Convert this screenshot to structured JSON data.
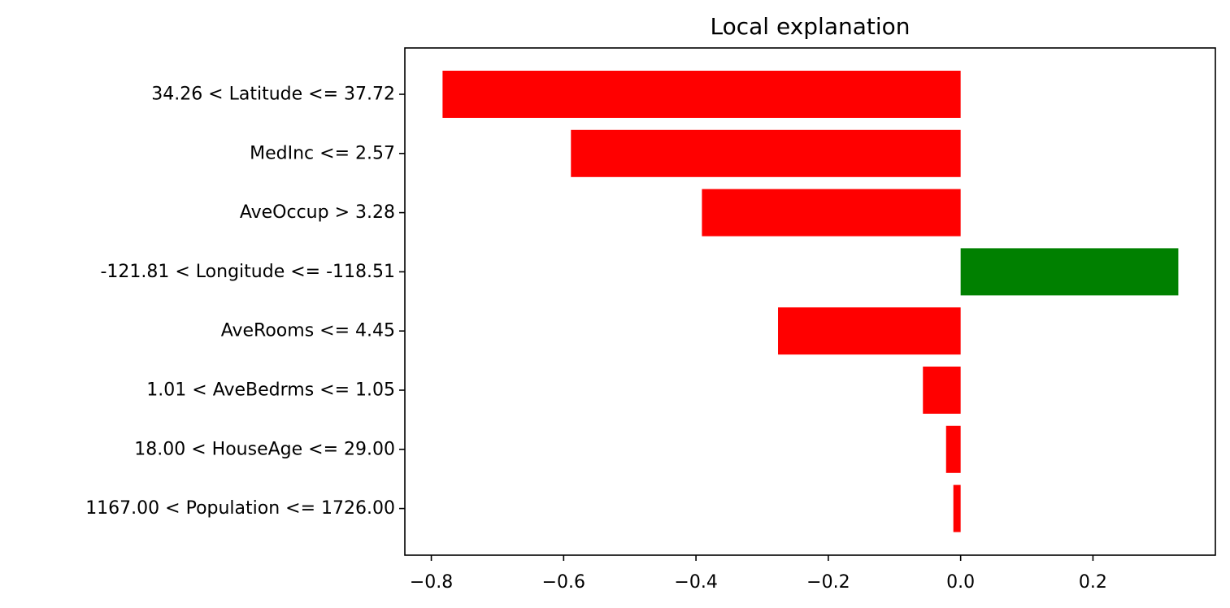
{
  "chart_data": {
    "type": "bar",
    "orientation": "horizontal",
    "title": "Local explanation",
    "xlabel": "",
    "ylabel": "",
    "categories": [
      "34.26 < Latitude <= 37.72",
      "MedInc <= 2.57",
      "AveOccup > 3.28",
      "-121.81 < Longitude <= -118.51",
      "AveRooms <= 4.45",
      "1.01 < AveBedrms <= 1.05",
      "18.00 < HouseAge <= 29.00",
      "1167.00 < Population <= 1726.00"
    ],
    "values": [
      -0.783,
      -0.589,
      -0.391,
      0.329,
      -0.276,
      -0.057,
      -0.022,
      -0.011
    ],
    "xlim": [
      -0.84,
      0.385
    ],
    "xticks": [
      -0.8,
      -0.6,
      -0.4,
      -0.2,
      0.0,
      0.2
    ],
    "xtick_labels": [
      "−0.8",
      "−0.6",
      "−0.4",
      "−0.2",
      "0.0",
      "0.2"
    ],
    "grid": false,
    "colors": {
      "negative": "#ff0000",
      "positive": "#008000"
    }
  }
}
